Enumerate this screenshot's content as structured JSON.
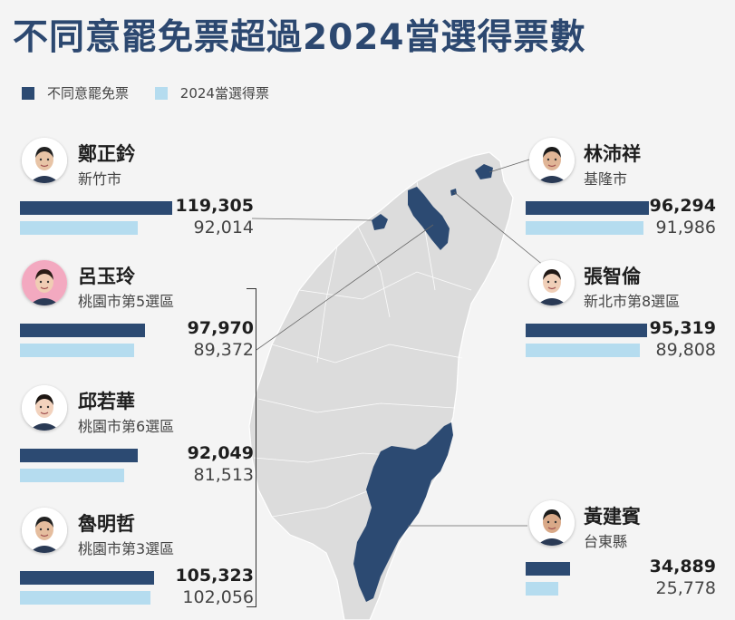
{
  "title": "不同意罷免票超過2024當選得票數",
  "colors": {
    "recall": "#2c4a72",
    "elected": "#b5dcef",
    "map": "#dcdcdc",
    "title": "#2c4870"
  },
  "chart_data": {
    "type": "bar",
    "orientation": "horizontal",
    "series": [
      {
        "name": "不同意罷免票",
        "color": "#2c4a72"
      },
      {
        "name": "2024當選得票",
        "color": "#b5dcef"
      }
    ],
    "candidates": [
      {
        "name": "鄭正鈐",
        "area": "新竹市",
        "recall_no": 119305,
        "recall_no_label": "119,305",
        "elected_2024": 92014,
        "elected_2024_label": "92,014"
      },
      {
        "name": "呂玉玲",
        "area": "桃園市第5選區",
        "recall_no": 97970,
        "recall_no_label": "97,970",
        "elected_2024": 89372,
        "elected_2024_label": "89,372"
      },
      {
        "name": "邱若華",
        "area": "桃園市第6選區",
        "recall_no": 92049,
        "recall_no_label": "92,049",
        "elected_2024": 81513,
        "elected_2024_label": "81,513"
      },
      {
        "name": "魯明哲",
        "area": "桃園市第3選區",
        "recall_no": 105323,
        "recall_no_label": "105,323",
        "elected_2024": 102056,
        "elected_2024_label": "102,056"
      },
      {
        "name": "林沛祥",
        "area": "基隆市",
        "recall_no": 96294,
        "recall_no_label": "96,294",
        "elected_2024": 91986,
        "elected_2024_label": "91,986"
      },
      {
        "name": "張智倫",
        "area": "新北市第8選區",
        "recall_no": 95319,
        "recall_no_label": "95,319",
        "elected_2024": 89808,
        "elected_2024_label": "89,808"
      },
      {
        "name": "黃建賓",
        "area": "台東縣",
        "recall_no": 34889,
        "recall_no_label": "34,889",
        "elected_2024": 25778,
        "elected_2024_label": "25,778"
      }
    ]
  }
}
